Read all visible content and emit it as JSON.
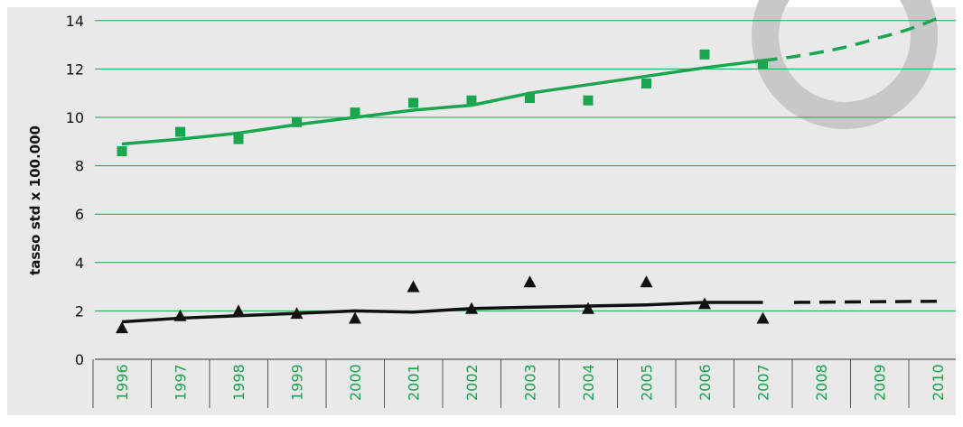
{
  "chart_data": {
    "type": "line",
    "ylabel": "tasso std x 100.000",
    "ylim": [
      0,
      14
    ],
    "yticks": [
      0,
      2,
      4,
      6,
      8,
      10,
      12,
      14
    ],
    "categories": [
      "1996",
      "1997",
      "1998",
      "1999",
      "2000",
      "2001",
      "2002",
      "2003",
      "2004",
      "2005",
      "2006",
      "2007",
      "2008",
      "2009",
      "2010"
    ],
    "grid": "horizontal",
    "series": [
      {
        "marker": "square",
        "color": "#1aa64e",
        "points": [
          [
            "1996",
            8.6
          ],
          [
            "1997",
            9.4
          ],
          [
            "1998",
            9.1
          ],
          [
            "1999",
            9.8
          ],
          [
            "2000",
            10.2
          ],
          [
            "2001",
            10.6
          ],
          [
            "2002",
            10.7
          ],
          [
            "2003",
            10.8
          ],
          [
            "2004",
            10.7
          ],
          [
            "2005",
            11.4
          ],
          [
            "2006",
            12.6
          ],
          [
            "2007",
            12.2
          ]
        ],
        "trend": [
          [
            "1996",
            8.9
          ],
          [
            "1997",
            9.1
          ],
          [
            "1998",
            9.35
          ],
          [
            "1999",
            9.7
          ],
          [
            "2000",
            10.0
          ],
          [
            "2001",
            10.3
          ],
          [
            "2002",
            10.5
          ],
          [
            "2003",
            11.0
          ],
          [
            "2004",
            11.35
          ],
          [
            "2005",
            11.7
          ],
          [
            "2006",
            12.05
          ],
          [
            "2007",
            12.35
          ]
        ],
        "projection": [
          [
            "2007",
            12.35
          ],
          [
            "2008",
            12.7
          ],
          [
            "2009",
            13.3
          ],
          [
            "2010",
            14.1
          ]
        ]
      },
      {
        "marker": "triangle",
        "color": "#111111",
        "points": [
          [
            "1996",
            1.3
          ],
          [
            "1997",
            1.8
          ],
          [
            "1998",
            2.0
          ],
          [
            "1999",
            1.9
          ],
          [
            "2000",
            1.7
          ],
          [
            "2001",
            3.0
          ],
          [
            "2002",
            2.1
          ],
          [
            "2003",
            3.2
          ],
          [
            "2004",
            2.1
          ],
          [
            "2005",
            3.2
          ],
          [
            "2006",
            2.3
          ],
          [
            "2007",
            1.7
          ]
        ],
        "trend": [
          [
            "1996",
            1.55
          ],
          [
            "1997",
            1.7
          ],
          [
            "1998",
            1.8
          ],
          [
            "1999",
            1.9
          ],
          [
            "2000",
            2.0
          ],
          [
            "2001",
            1.95
          ],
          [
            "2002",
            2.1
          ],
          [
            "2003",
            2.15
          ],
          [
            "2004",
            2.2
          ],
          [
            "2005",
            2.25
          ],
          [
            "2006",
            2.35
          ],
          [
            "2007",
            2.35
          ]
        ],
        "projection": [
          [
            "2008",
            2.35
          ],
          [
            "2009",
            2.35
          ],
          [
            "2010",
            2.4
          ]
        ]
      }
    ],
    "colors": {
      "panel": "#e9e9e9",
      "grid": "#1aa64e",
      "tick_labels_x": "#1aa64e",
      "decoration_ring": "#c8c8c8"
    }
  }
}
